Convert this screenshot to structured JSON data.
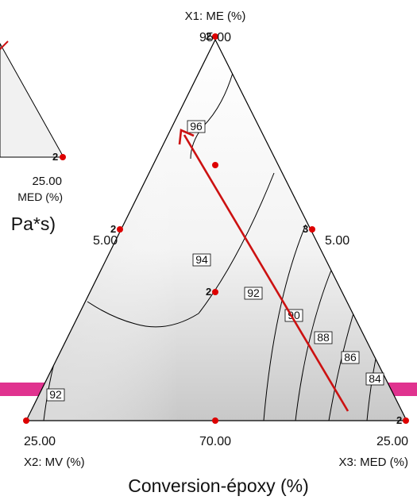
{
  "chart_data": {
    "type": "ternary-contour",
    "title": "Conversion-époxy (%)",
    "axes": {
      "top": {
        "label": "X1: ME (%)",
        "max_label": "95.00",
        "min_label": "5.00"
      },
      "left": {
        "label": "X2: MV (%)",
        "max_label": "25.00",
        "min_label": "5.00"
      },
      "right": {
        "label": "X3: MED (%)",
        "max_label": "25.00",
        "min_label": "5.00"
      },
      "bottom_mid": "70.00"
    },
    "contour_levels": [
      84,
      86,
      88,
      90,
      92,
      94,
      96
    ],
    "design_points": [
      {
        "label": "2"
      },
      {
        "label": "2"
      },
      {
        "label": "3"
      },
      {
        "label": "2"
      },
      {
        "label": "2"
      }
    ],
    "arrow": {
      "color": "#cc1111"
    },
    "background_partial": {
      "values": [
        "25.00",
        "MED (%)",
        "Pa*s)"
      ],
      "point_label": "2"
    },
    "accent_color": "#e0338f"
  }
}
